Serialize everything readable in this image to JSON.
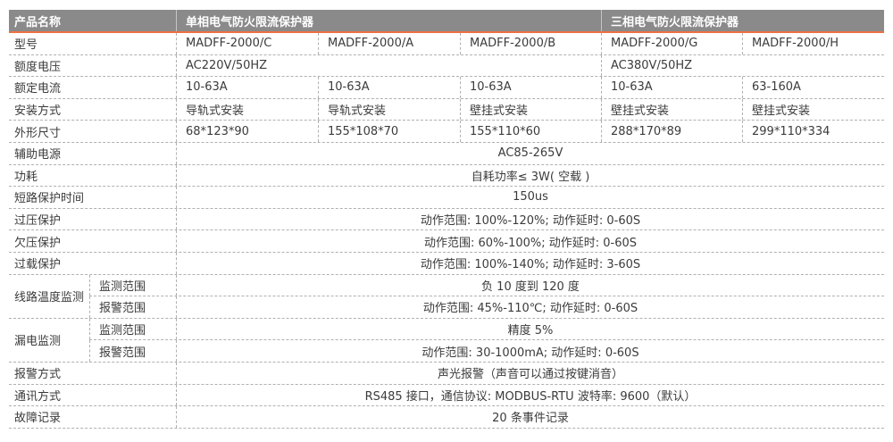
{
  "colors": {
    "header_bg": "#8a8a8a",
    "header_text": "#ffffff",
    "accent_line": "#ee7144",
    "dashed_border": "#b0b0b0",
    "text": "#3b3b3b"
  },
  "header": {
    "product": "产品名称",
    "single_phase": "单相电气防火限流保护器",
    "three_phase": "三相电气防火限流保护器"
  },
  "rows": {
    "model": {
      "label": "型号",
      "values": [
        "MADFF-2000/C",
        "MADFF-2000/A",
        "MADFF-2000/B",
        "MADFF-2000/G",
        "MADFF-2000/H"
      ]
    },
    "rated_voltage": {
      "label": "额度电压",
      "single": "AC220V/50HZ",
      "three": "AC380V/50HZ"
    },
    "rated_current": {
      "label": "额定电流",
      "values": [
        "10-63A",
        "10-63A",
        "10-63A",
        "10-63A",
        "63-160A"
      ]
    },
    "mounting": {
      "label": "安装方式",
      "values": [
        "导轨式安装",
        "导轨式安装",
        "壁挂式安装",
        "壁挂式安装",
        "壁挂式安装"
      ]
    },
    "dimensions": {
      "label": "外形尺寸",
      "values": [
        "68*123*90",
        "155*108*70",
        "155*110*60",
        "288*170*89",
        "299*110*334"
      ]
    },
    "aux_power": {
      "label": "辅助电源",
      "value": "AC85-265V"
    },
    "power_consumption": {
      "label": "功耗",
      "value": "自耗功率≤ 3W( 空载 )"
    },
    "short_circuit_time": {
      "label": "短路保护时间",
      "value": "150us"
    },
    "overvoltage": {
      "label": "过压保护",
      "value": "动作范围: 100%-120%; 动作延时: 0-60S"
    },
    "undervoltage": {
      "label": "欠压保护",
      "value": "动作范围: 60%-100%; 动作延时: 0-60S"
    },
    "overload": {
      "label": "过载保护",
      "value": "动作范围: 100%-140%; 动作延时: 3-60S"
    },
    "line_temp": {
      "label": "线路温度监测",
      "sub": [
        {
          "label": "监测范围",
          "value": "负 10 度到 120 度"
        },
        {
          "label": "报警范围",
          "value": "动作范围: 45%-110℃; 动作延时: 0-60S"
        }
      ]
    },
    "leakage": {
      "label": "漏电监测",
      "sub": [
        {
          "label": "监测范围",
          "value": "精度 5%"
        },
        {
          "label": "报警范围",
          "value": "动作范围: 30-1000mA; 动作延时: 0-60S"
        }
      ]
    },
    "alarm": {
      "label": "报警方式",
      "value": "声光报警（声音可以通过按键消音）"
    },
    "communication": {
      "label": "通讯方式",
      "value": "RS485 接口，通信协议: MODBUS-RTU 波特率: 9600（默认）"
    },
    "fault_record": {
      "label": "故障记录",
      "value": "20 条事件记录"
    }
  }
}
